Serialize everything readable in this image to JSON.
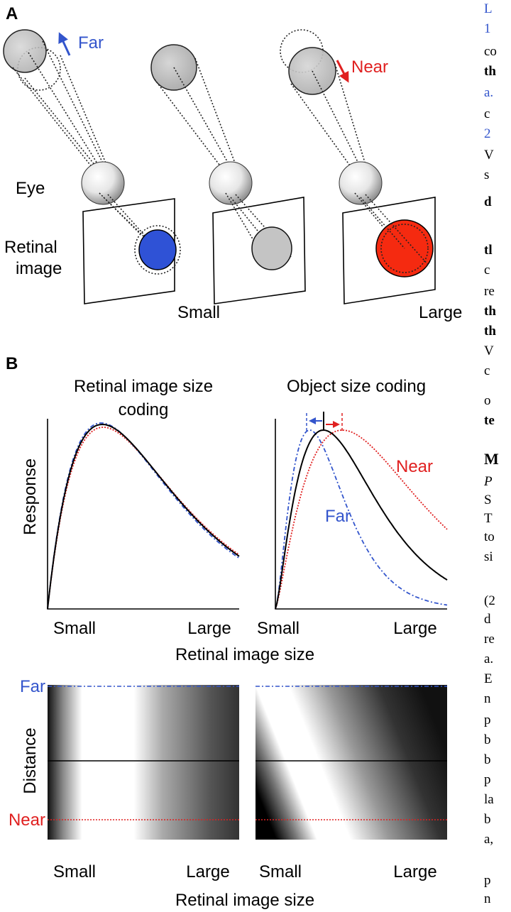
{
  "panel_a": {
    "label": "A",
    "far": "Far",
    "near": "Near",
    "eye": "Eye",
    "retinal_image": [
      "Retinal",
      "image"
    ],
    "small": "Small",
    "large": "Large"
  },
  "panel_b": {
    "label": "B",
    "left_title": [
      "Retinal image size",
      "coding"
    ],
    "right_title": "Object size coding",
    "y_label": "Response",
    "x_ticks": [
      "Small",
      "Large"
    ],
    "x_label": "Retinal image size",
    "near": "Near",
    "far": "Far",
    "heatmap_y_label": "Distance",
    "heatmap_far": "Far",
    "heatmap_near": "Near",
    "heatmap_x_label": "Retinal image size"
  },
  "side_text": [
    "L",
    "1",
    "co",
    "th",
    "a.",
    "c",
    "2",
    "V",
    "s",
    "d",
    "tl",
    "c",
    "re",
    "th",
    "th",
    "V",
    "c",
    "o",
    "te",
    "M",
    "P",
    "S",
    "T",
    "to",
    "si",
    "(2",
    "d",
    "re",
    "a.",
    "E",
    "n",
    "p",
    "b",
    "b",
    "p",
    "la",
    "b",
    "a,",
    "p",
    "n"
  ]
}
